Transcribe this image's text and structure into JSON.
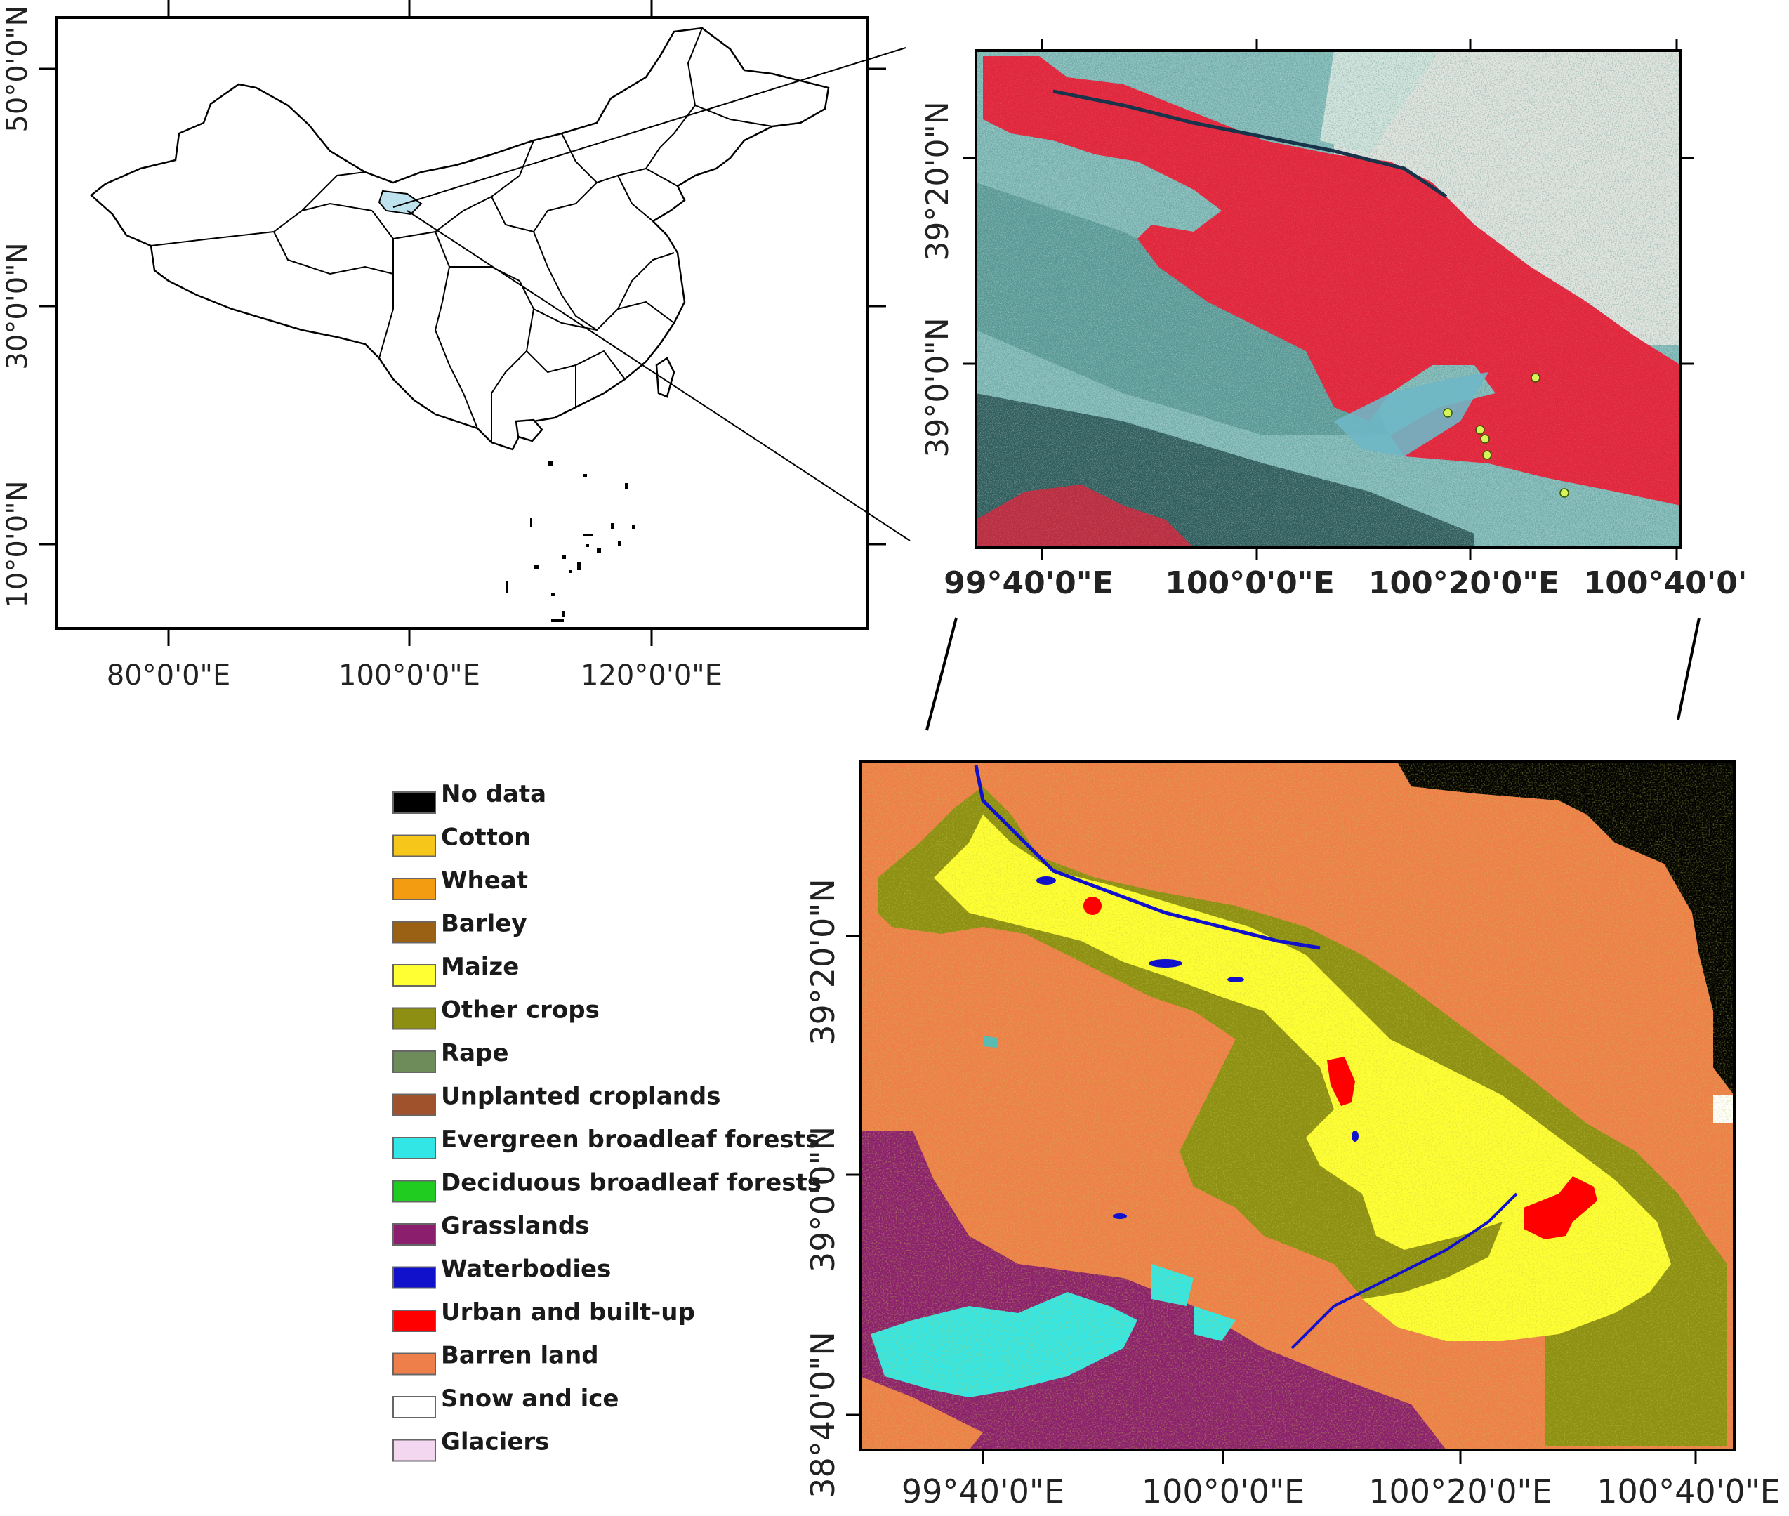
{
  "overview_map": {
    "lon_ticks": [
      "80°0'0\"E",
      "100°0'0\"E",
      "120°0'0\"E"
    ],
    "lat_ticks": [
      "50°0'0\"N",
      "30°0'0\"N",
      "10°0'0\"N"
    ],
    "frame_color": "#000000",
    "study_area_fill": "#bfe3ee"
  },
  "satellite_map": {
    "lon_ticks": [
      "99°40'0\"E",
      "100°0'0\"E",
      "100°20'0\"E",
      "100°40'0'"
    ],
    "lat_ticks": [
      "39°20'0\"N",
      "39°0'0\"N"
    ],
    "oasis_color": "#e0263c",
    "desert_color": "#7fb9b6",
    "sample_point_color": "#d7f55a"
  },
  "landcover_map": {
    "lon_ticks": [
      "99°40'0\"E",
      "100°0'0\"E",
      "100°20'0\"E",
      "100°40'0\"E"
    ],
    "lat_ticks": [
      "39°20'0\"N",
      "39°0'0\"N",
      "38°40'0\"N"
    ]
  },
  "legend": {
    "items": [
      {
        "label": "No data",
        "color": "#000000"
      },
      {
        "label": "Cotton",
        "color": "#f7c61b"
      },
      {
        "label": "Wheat",
        "color": "#f39c12"
      },
      {
        "label": "Barley",
        "color": "#9a6014"
      },
      {
        "label": "Maize",
        "color": "#ffff33"
      },
      {
        "label": "Other crops",
        "color": "#8c8f12"
      },
      {
        "label": "Rape",
        "color": "#6e8c5a"
      },
      {
        "label": "Unplanted croplands",
        "color": "#a0522d"
      },
      {
        "label": "Evergreen broadleaf forests",
        "color": "#33e6e6"
      },
      {
        "label": "Deciduous broadleaf forests",
        "color": "#1fcc1f"
      },
      {
        "label": "Grasslands",
        "color": "#8b1f6e"
      },
      {
        "label": "Waterbodies",
        "color": "#1111cc"
      },
      {
        "label": "Urban and built-up",
        "color": "#ff0000"
      },
      {
        "label": "Barren land",
        "color": "#ef7f4a"
      },
      {
        "label": "Snow and ice",
        "color": "#ffffff"
      },
      {
        "label": "Glaciers",
        "color": "#f3d6ef"
      }
    ]
  }
}
